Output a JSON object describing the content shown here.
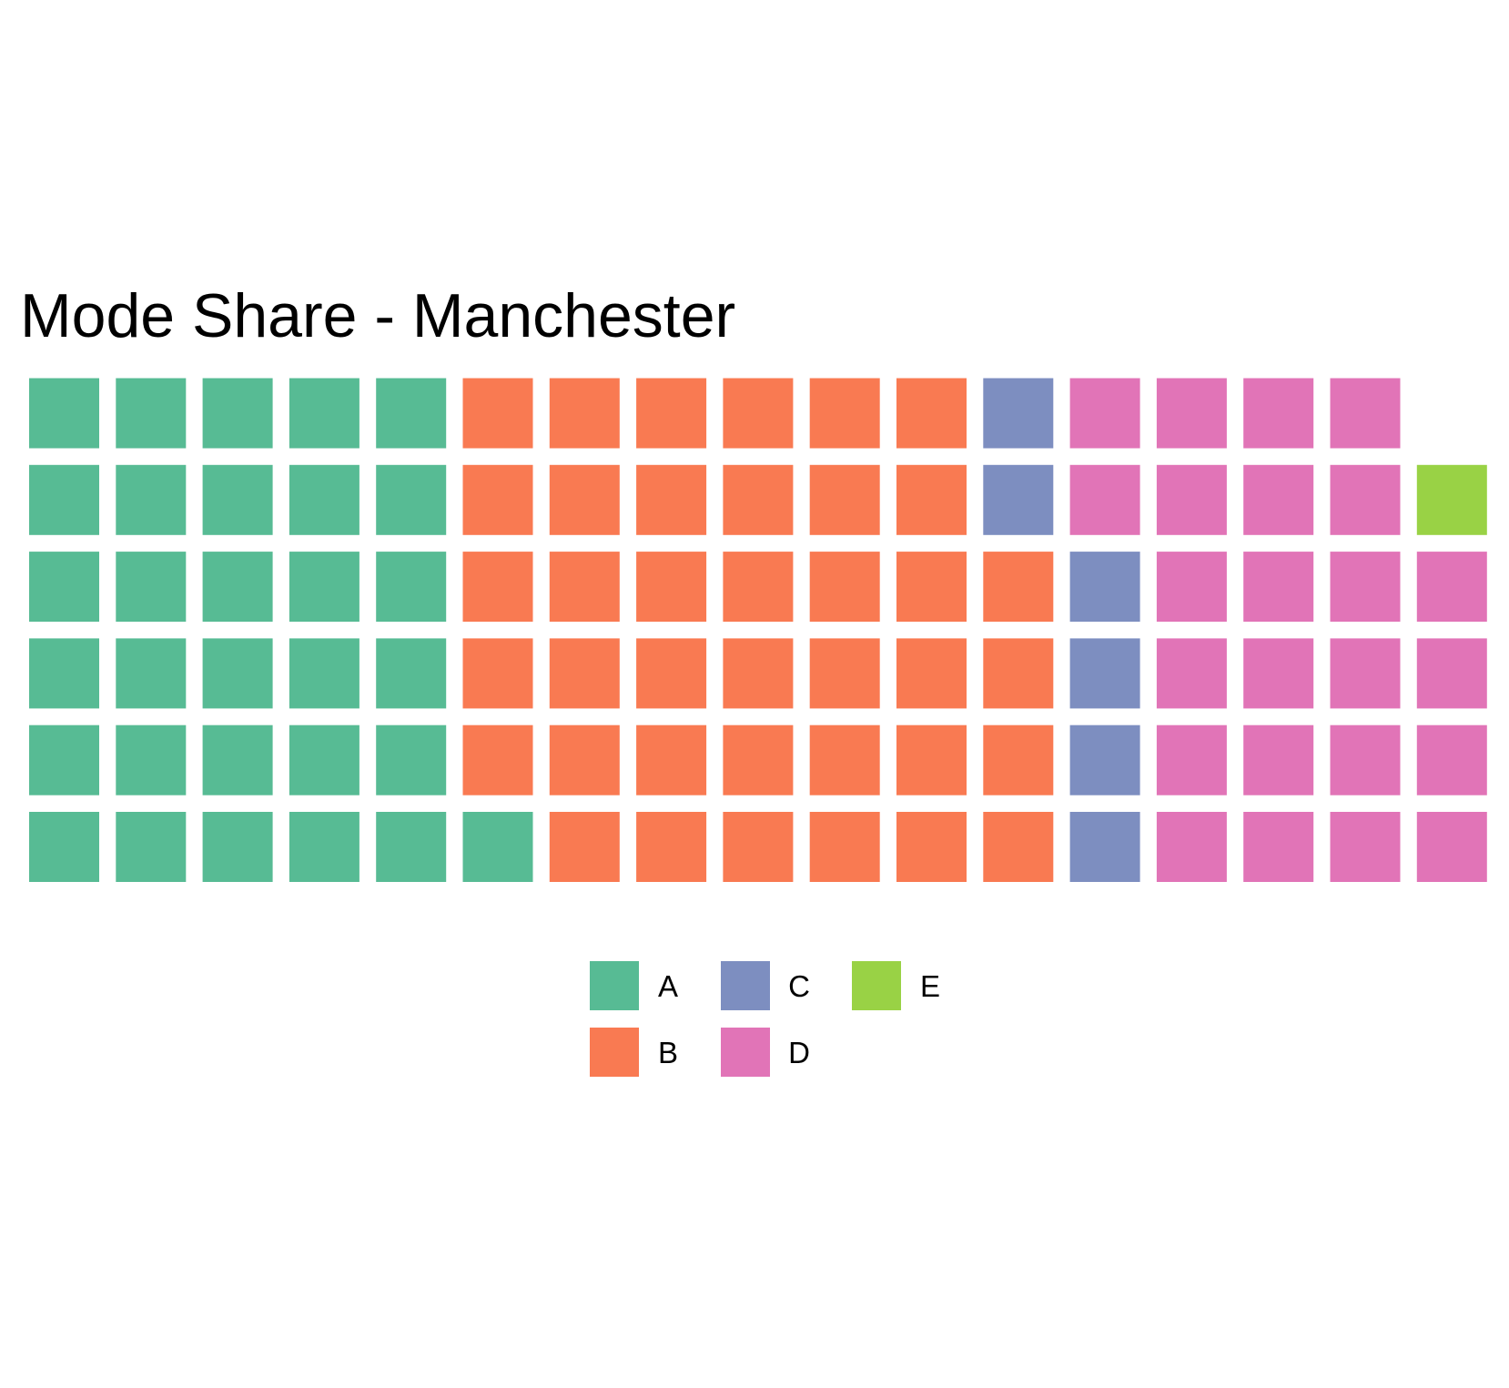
{
  "chart_data": {
    "type": "waffle",
    "title": "Mode Share - Manchester",
    "rows": 6,
    "fill_order": "column-major, bottom-to-top",
    "categories": [
      "A",
      "B",
      "C",
      "D",
      "E"
    ],
    "values": [
      31,
      39,
      6,
      24,
      1
    ],
    "colors": {
      "A": "#57bb94",
      "B": "#f97a52",
      "C": "#7d8ec0",
      "D": "#e174b7",
      "E": "#99d245"
    },
    "grid": false,
    "legend_position": "bottom"
  }
}
